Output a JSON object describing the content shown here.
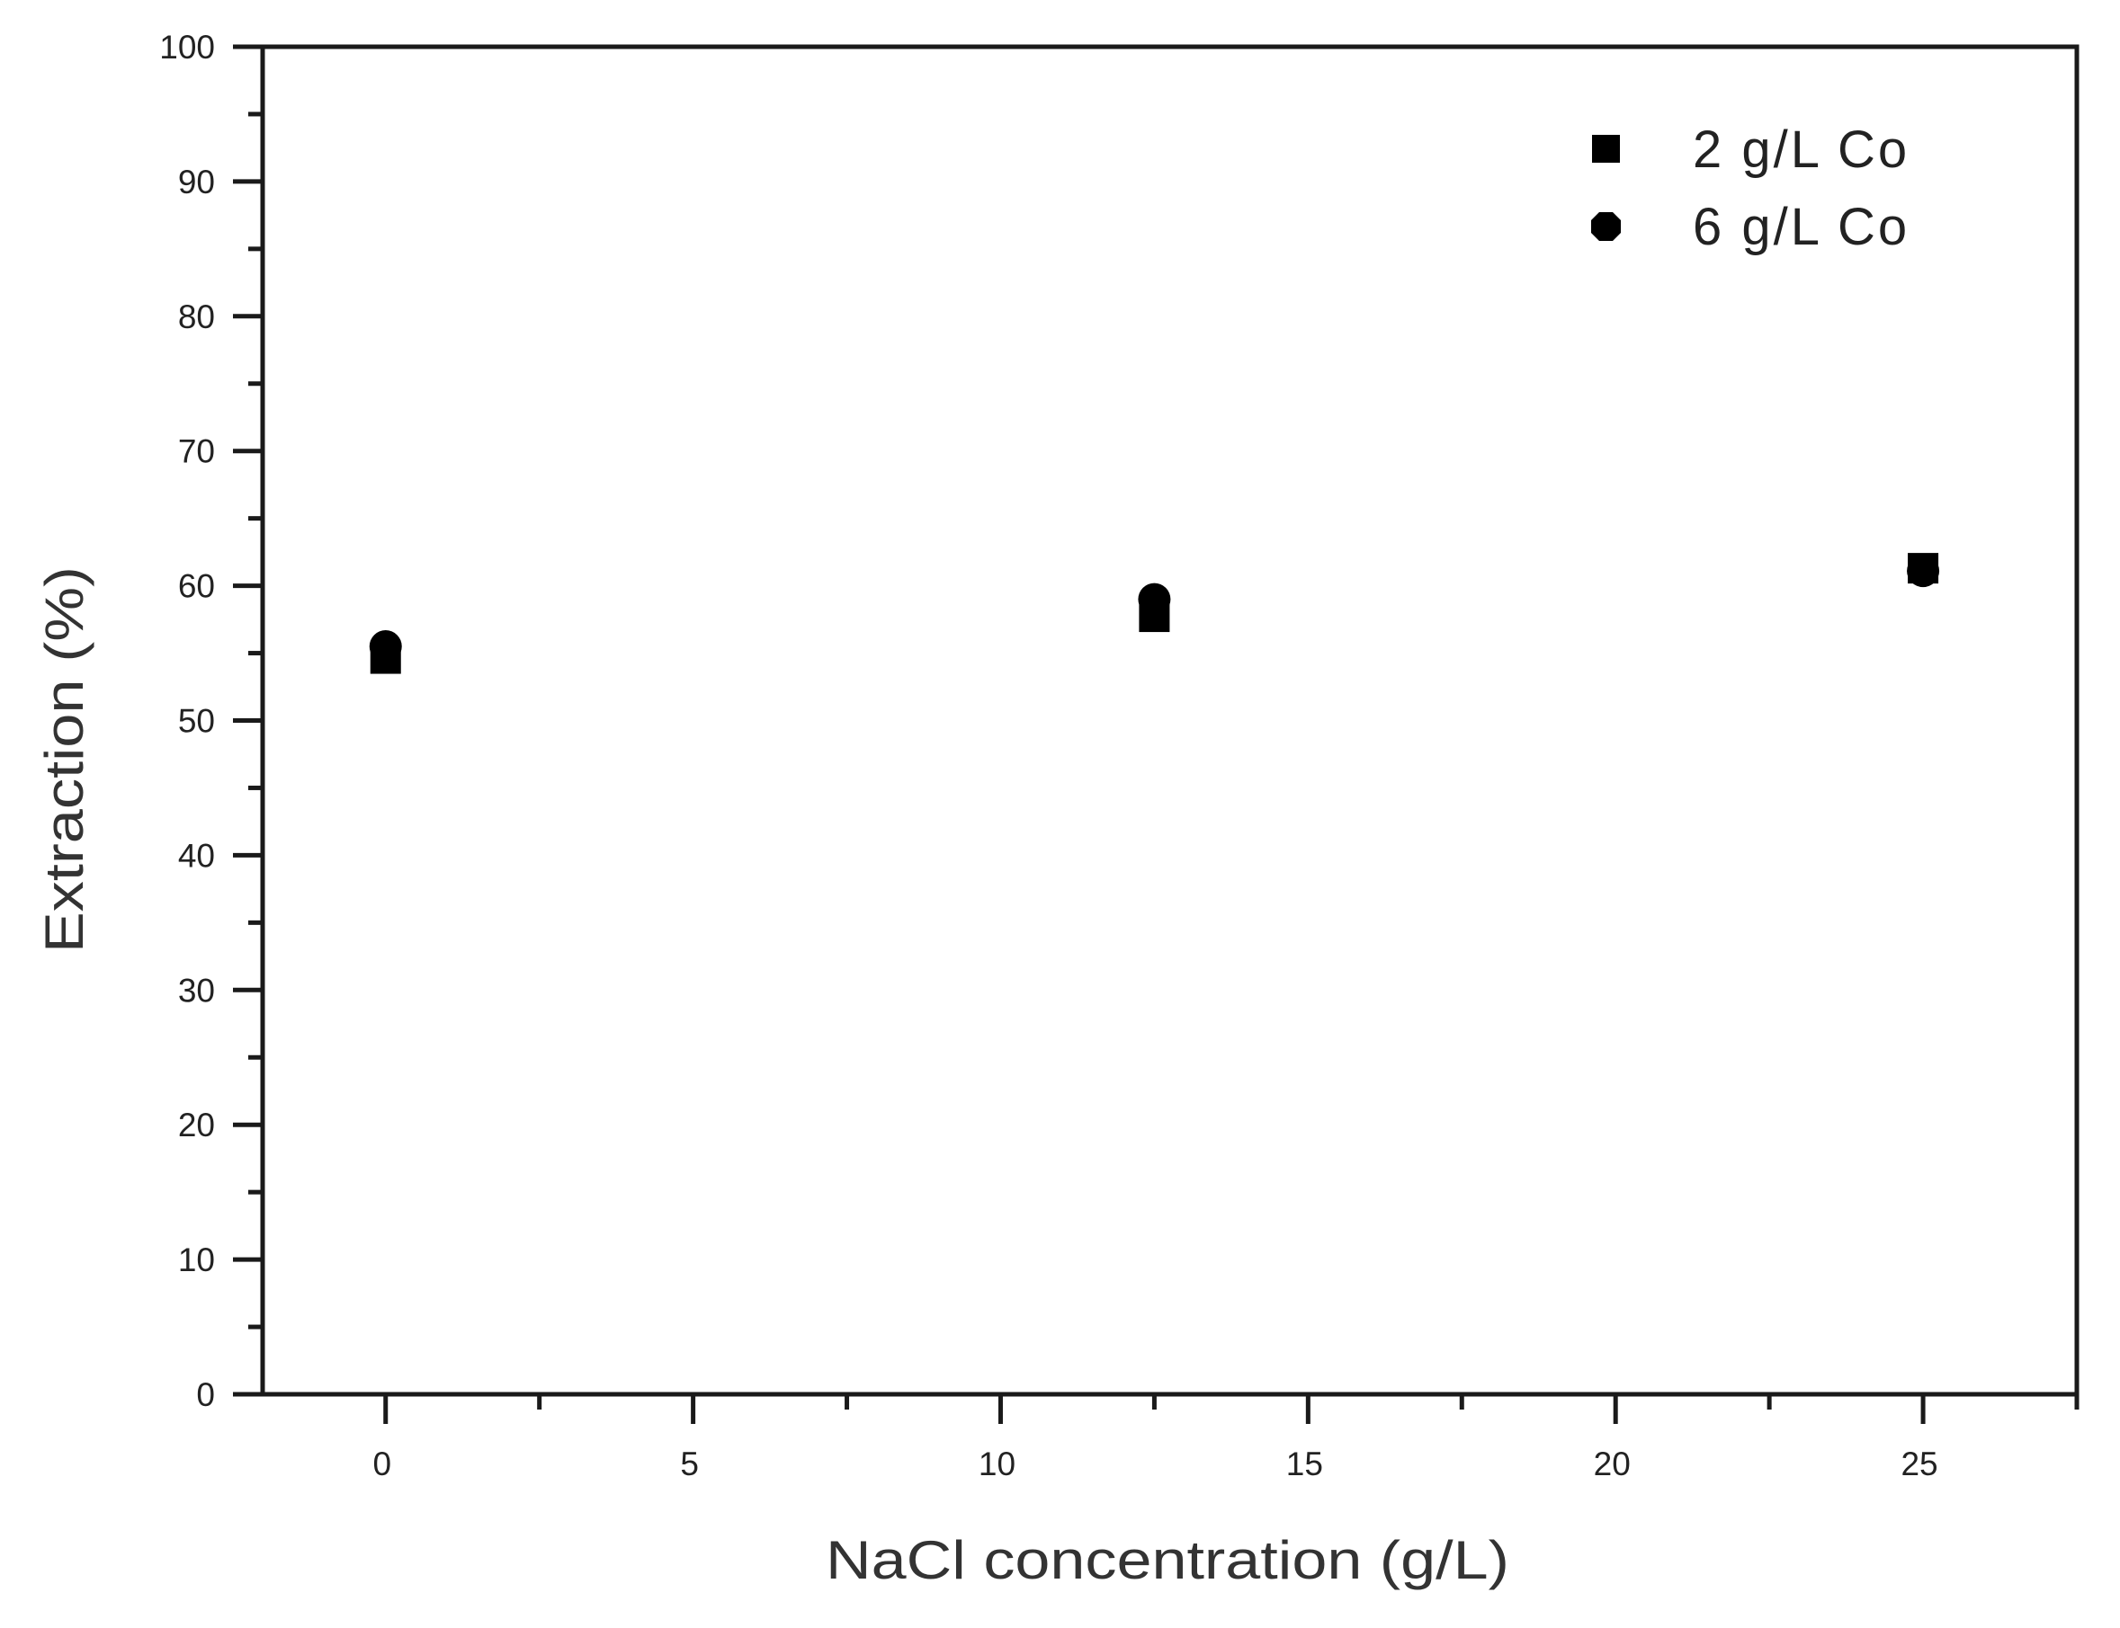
{
  "chart_data": {
    "type": "scatter",
    "title": "",
    "xlabel": "NaCl concentration (g/L)",
    "ylabel": "Extraction (%)",
    "xlim": [
      -2,
      27.5
    ],
    "ylim": [
      0,
      100
    ],
    "x_ticks": [
      0,
      5,
      10,
      15,
      20,
      25
    ],
    "x_tick_labels": [
      "0",
      "5",
      "10",
      "15",
      "20",
      "25"
    ],
    "x_minor_step": 2.5,
    "y_ticks": [
      0,
      10,
      20,
      30,
      40,
      50,
      60,
      70,
      80,
      90,
      100
    ],
    "y_tick_labels": [
      "0",
      "10",
      "20",
      "30",
      "40",
      "50",
      "60",
      "70",
      "80",
      "90",
      "100"
    ],
    "y_minor_step": 5,
    "grid": false,
    "legend_position": "upper right",
    "series": [
      {
        "name": "2 g/L Co",
        "marker": "square",
        "color": "#000000",
        "x": [
          0,
          12.5,
          25
        ],
        "y": [
          54.6,
          57.7,
          61.3
        ]
      },
      {
        "name": "6 g/L Co",
        "marker": "circle",
        "color": "#000000",
        "x": [
          0,
          12.5,
          25
        ],
        "y": [
          55.5,
          59.0,
          61.1
        ]
      }
    ]
  },
  "legend": {
    "items": [
      {
        "label": "2 g/L Co",
        "marker": "square"
      },
      {
        "label": "6 g/L Co",
        "marker": "circle"
      }
    ]
  },
  "axes": {
    "x_title": "NaCl concentration (g/L)",
    "y_title": "Extraction (%)"
  },
  "colors": {
    "axis": "#1a1a1a",
    "marker": "#000000",
    "text": "#222222"
  }
}
